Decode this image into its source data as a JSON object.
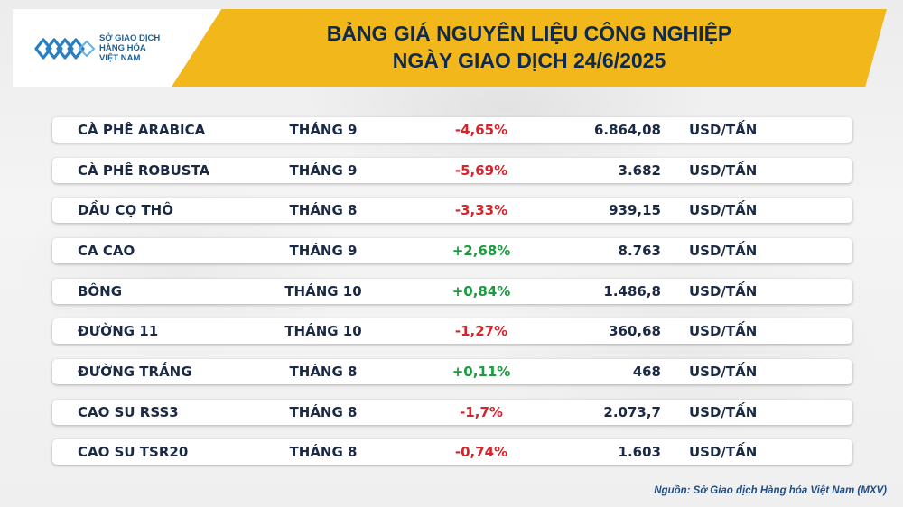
{
  "logo": {
    "lines": [
      "SỞ GIAO DỊCH",
      "HÀNG HÓA",
      "VIỆT NAM"
    ],
    "icon": "mxv-logo-icon",
    "color": "#1d5f95"
  },
  "title": {
    "line1": "BẢNG GIÁ NGUYÊN LIỆU CÔNG NGHIỆP",
    "line2": "NGÀY GIAO DỊCH 24/6/2025"
  },
  "colors": {
    "banner": "#f2b71a",
    "negative": "#d8232a",
    "positive": "#1a9c3e"
  },
  "rows": [
    {
      "name": "CÀ PHÊ ARABICA",
      "month": "THÁNG 9",
      "change": "-4,65%",
      "price": "6.864,08",
      "unit": "USD/TẤN",
      "trend": "neg"
    },
    {
      "name": "CÀ PHÊ ROBUSTA",
      "month": "THÁNG 9",
      "change": "-5,69%",
      "price": "3.682",
      "unit": "USD/TẤN",
      "trend": "neg"
    },
    {
      "name": "DẦU CỌ THÔ",
      "month": "THÁNG 8",
      "change": "-3,33%",
      "price": "939,15",
      "unit": "USD/TẤN",
      "trend": "neg"
    },
    {
      "name": "CA CAO",
      "month": "THÁNG 9",
      "change": "+2,68%",
      "price": "8.763",
      "unit": "USD/TẤN",
      "trend": "pos"
    },
    {
      "name": "BÔNG",
      "month": "THÁNG 10",
      "change": "+0,84%",
      "price": "1.486,8",
      "unit": "USD/TẤN",
      "trend": "pos"
    },
    {
      "name": "ĐƯỜNG 11",
      "month": "THÁNG 10",
      "change": "-1,27%",
      "price": "360,68",
      "unit": "USD/TẤN",
      "trend": "neg"
    },
    {
      "name": "ĐƯỜNG TRẮNG",
      "month": "THÁNG 8",
      "change": "+0,11%",
      "price": "468",
      "unit": "USD/TẤN",
      "trend": "pos"
    },
    {
      "name": "CAO SU RSS3",
      "month": "THÁNG 8",
      "change": "-1,7%",
      "price": "2.073,7",
      "unit": "USD/TẤN",
      "trend": "neg"
    },
    {
      "name": "CAO SU TSR20",
      "month": "THÁNG 8",
      "change": "-0,74%",
      "price": "1.603",
      "unit": "USD/TẤN",
      "trend": "neg"
    }
  ],
  "source": "Nguồn: Sở Giao dịch Hàng hóa Việt Nam (MXV)"
}
